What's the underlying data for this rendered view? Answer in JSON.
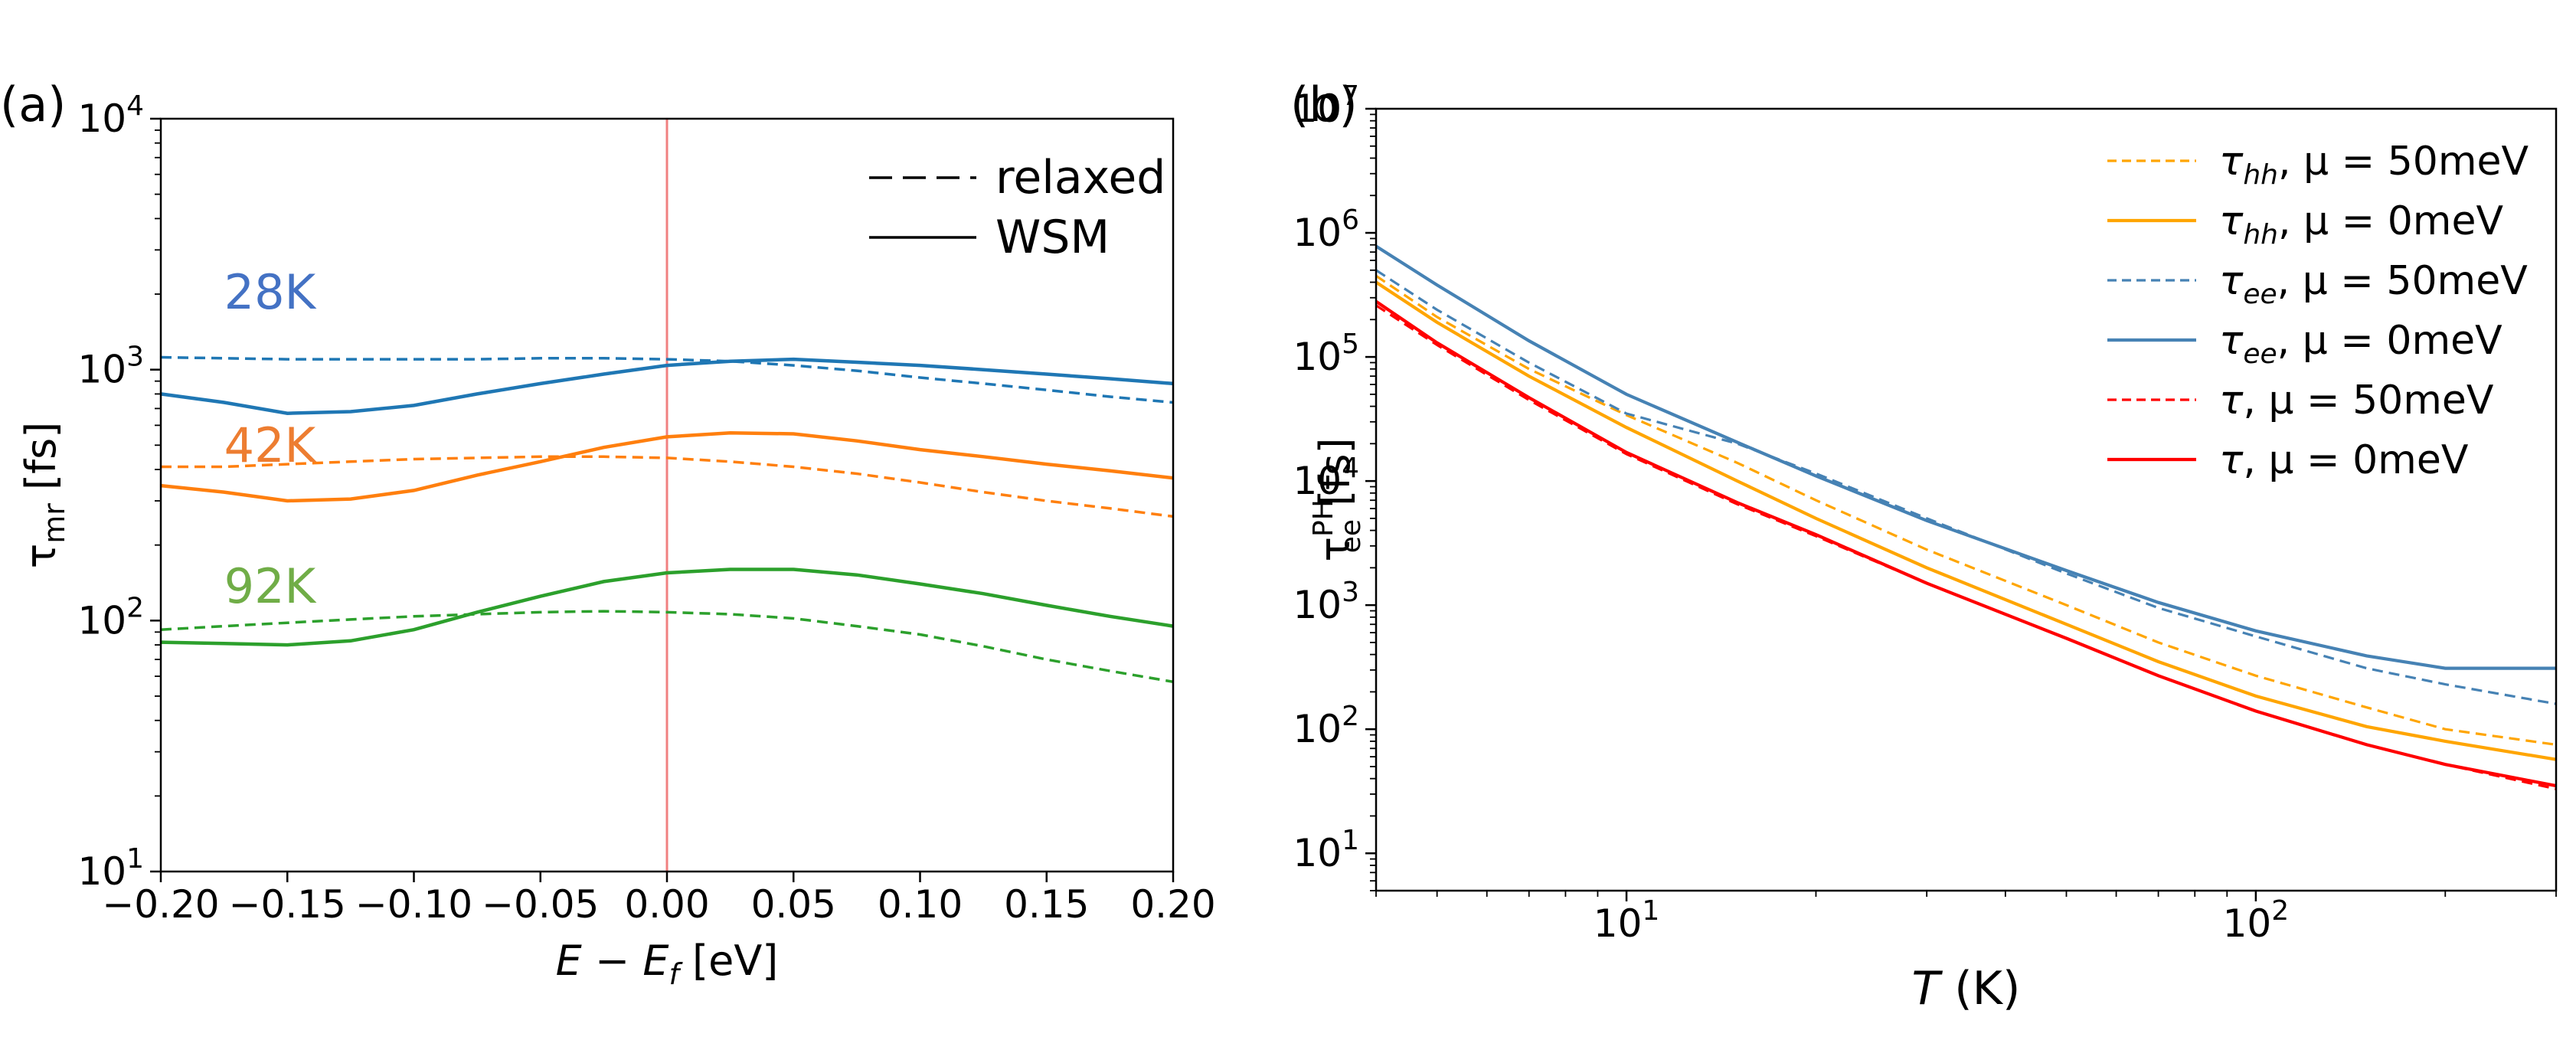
{
  "chart_data": [
    {
      "panel_label": "(a)",
      "type": "line",
      "xscale": "linear",
      "yscale": "log",
      "xlabel": "E − E_f [eV]",
      "xlabel_parts": {
        "a": "E",
        "op": " − ",
        "b": "E",
        "sub": "f",
        "unit": " [eV]"
      },
      "ylabel": "τ_mr [fs]",
      "ylabel_parts": {
        "sym": "τ",
        "sub": "mr",
        "unit": " [fs]"
      },
      "xlim": [
        -0.2,
        0.2
      ],
      "ylim": [
        10,
        10000
      ],
      "xticks": [
        -0.2,
        -0.15,
        -0.1,
        -0.05,
        0.0,
        0.05,
        0.1,
        0.15,
        0.2
      ],
      "xtick_labels": [
        "−0.20",
        "−0.15",
        "−0.10",
        "−0.05",
        "0.00",
        "0.05",
        "0.10",
        "0.15",
        "0.20"
      ],
      "yticks": [
        10,
        100,
        1000,
        10000
      ],
      "ytick_labels": [
        {
          "base": "10",
          "exp": "1"
        },
        {
          "base": "10",
          "exp": "2"
        },
        {
          "base": "10",
          "exp": "3"
        },
        {
          "base": "10",
          "exp": "4"
        }
      ],
      "vline": {
        "x": 0.0,
        "color": "#f08080"
      },
      "legend": {
        "location": "top-right",
        "entries": [
          {
            "label": "relaxed",
            "style": "dashed"
          },
          {
            "label": "WSM",
            "style": "solid"
          }
        ]
      },
      "annotations": [
        {
          "text": "28K",
          "color": "#4472c4",
          "x": -0.175,
          "y": 1750
        },
        {
          "text": "42K",
          "color": "#ed7d31",
          "x": -0.175,
          "y": 430
        },
        {
          "text": "92K",
          "color": "#70ad47",
          "x": -0.175,
          "y": 118
        }
      ],
      "x": [
        -0.2,
        -0.175,
        -0.15,
        -0.125,
        -0.1,
        -0.075,
        -0.05,
        -0.025,
        0.0,
        0.025,
        0.05,
        0.075,
        0.1,
        0.125,
        0.15,
        0.175,
        0.2
      ],
      "series": [
        {
          "name": "28K WSM",
          "color": "#1f77b4",
          "style": "solid",
          "values": [
            800,
            740,
            670,
            680,
            720,
            800,
            880,
            960,
            1040,
            1080,
            1100,
            1070,
            1040,
            1000,
            960,
            920,
            880
          ]
        },
        {
          "name": "28K relaxed",
          "color": "#1f77b4",
          "style": "dashed",
          "values": [
            1120,
            1110,
            1100,
            1100,
            1100,
            1100,
            1110,
            1110,
            1100,
            1080,
            1040,
            990,
            930,
            880,
            830,
            780,
            740
          ]
        },
        {
          "name": "42K WSM",
          "color": "#ff7f0e",
          "style": "solid",
          "values": [
            345,
            325,
            300,
            305,
            330,
            380,
            430,
            490,
            540,
            560,
            555,
            520,
            480,
            450,
            420,
            395,
            370
          ]
        },
        {
          "name": "42K relaxed",
          "color": "#ff7f0e",
          "style": "dashed",
          "values": [
            410,
            410,
            420,
            430,
            440,
            445,
            450,
            450,
            445,
            430,
            410,
            385,
            355,
            325,
            300,
            280,
            260
          ]
        },
        {
          "name": "92K WSM",
          "color": "#2ca02c",
          "style": "solid",
          "values": [
            82,
            81,
            80,
            83,
            92,
            108,
            125,
            143,
            155,
            160,
            160,
            152,
            140,
            128,
            115,
            104,
            95
          ]
        },
        {
          "name": "92K relaxed",
          "color": "#2ca02c",
          "style": "dashed",
          "values": [
            92,
            95,
            98,
            101,
            104,
            106,
            108,
            109,
            108,
            106,
            102,
            95,
            88,
            79,
            70,
            63,
            57
          ]
        }
      ]
    },
    {
      "panel_label": "(b)",
      "type": "line",
      "xscale": "log",
      "yscale": "log",
      "xlabel": "T (K)",
      "xlabel_parts": {
        "sym": "T",
        "unit": " (K)"
      },
      "ylabel": "τ_ee^PH [fs]",
      "ylabel_parts": {
        "sym": "τ",
        "sup": "PH",
        "sub": "ee",
        "unit": " [fs]"
      },
      "xlim": [
        4,
        300
      ],
      "ylim": [
        5,
        10000000
      ],
      "xticks": [
        10,
        100
      ],
      "xtick_labels": [
        {
          "base": "10",
          "exp": "1"
        },
        {
          "base": "10",
          "exp": "2"
        }
      ],
      "yticks": [
        10,
        100,
        1000,
        10000,
        100000,
        1000000,
        10000000
      ],
      "ytick_labels": [
        {
          "base": "10",
          "exp": "1"
        },
        {
          "base": "10",
          "exp": "2"
        },
        {
          "base": "10",
          "exp": "3"
        },
        {
          "base": "10",
          "exp": "4"
        },
        {
          "base": "10",
          "exp": "5"
        },
        {
          "base": "10",
          "exp": "6"
        },
        {
          "base": "10",
          "exp": "7"
        }
      ],
      "legend": {
        "location": "top-right",
        "entries": [
          {
            "sym": "τ",
            "sub": "hh",
            "rest": ", μ = 50meV",
            "color": "#ffa500",
            "style": "dashed"
          },
          {
            "sym": "τ",
            "sub": "hh",
            "rest": ", μ = 0meV",
            "color": "#ffa500",
            "style": "solid"
          },
          {
            "sym": "τ",
            "sub": "ee",
            "rest": ", μ = 50meV",
            "color": "#4682b4",
            "style": "dashed"
          },
          {
            "sym": "τ",
            "sub": "ee",
            "rest": ", μ = 0meV",
            "color": "#4682b4",
            "style": "solid"
          },
          {
            "sym": "τ",
            "sub": "",
            "rest": ", μ = 50meV",
            "color": "#ff0000",
            "style": "dashed"
          },
          {
            "sym": "τ",
            "sub": "",
            "rest": ", μ = 0meV",
            "color": "#ff0000",
            "style": "solid"
          }
        ]
      },
      "x": [
        4,
        5,
        7,
        10,
        15,
        20,
        30,
        50,
        70,
        100,
        150,
        200,
        300
      ],
      "series": [
        {
          "name": "τ_hh, μ = 50meV",
          "color": "#ffa500",
          "style": "dashed",
          "values": [
            450000,
            210000,
            80000,
            34000,
            14000,
            7000,
            2800,
            1000,
            500,
            270,
            150,
            100,
            75
          ]
        },
        {
          "name": "τ_hh, μ = 0meV",
          "color": "#ffa500",
          "style": "solid",
          "values": [
            400000,
            190000,
            70000,
            27000,
            10000,
            5000,
            2000,
            700,
            350,
            185,
            105,
            80,
            57
          ]
        },
        {
          "name": "τ_ee, μ = 50meV",
          "color": "#4682b4",
          "style": "dashed",
          "values": [
            500000,
            240000,
            90000,
            35000,
            20000,
            11500,
            5000,
            1800,
            950,
            560,
            310,
            230,
            160
          ]
        },
        {
          "name": "τ_ee, μ = 0meV",
          "color": "#4682b4",
          "style": "solid",
          "values": [
            780000,
            380000,
            135000,
            50000,
            20500,
            11000,
            4800,
            1900,
            1050,
            620,
            390,
            310,
            310
          ]
        },
        {
          "name": "τ, μ = 50meV",
          "color": "#ff0000",
          "style": "dashed",
          "values": [
            260000,
            125000,
            45000,
            16500,
            6500,
            3600,
            1500,
            540,
            270,
            140,
            75,
            52,
            33
          ]
        },
        {
          "name": "τ, μ = 0meV",
          "color": "#ff0000",
          "style": "solid",
          "values": [
            280000,
            130000,
            47000,
            17000,
            6700,
            3700,
            1500,
            540,
            270,
            140,
            75,
            52,
            35
          ]
        }
      ]
    }
  ]
}
